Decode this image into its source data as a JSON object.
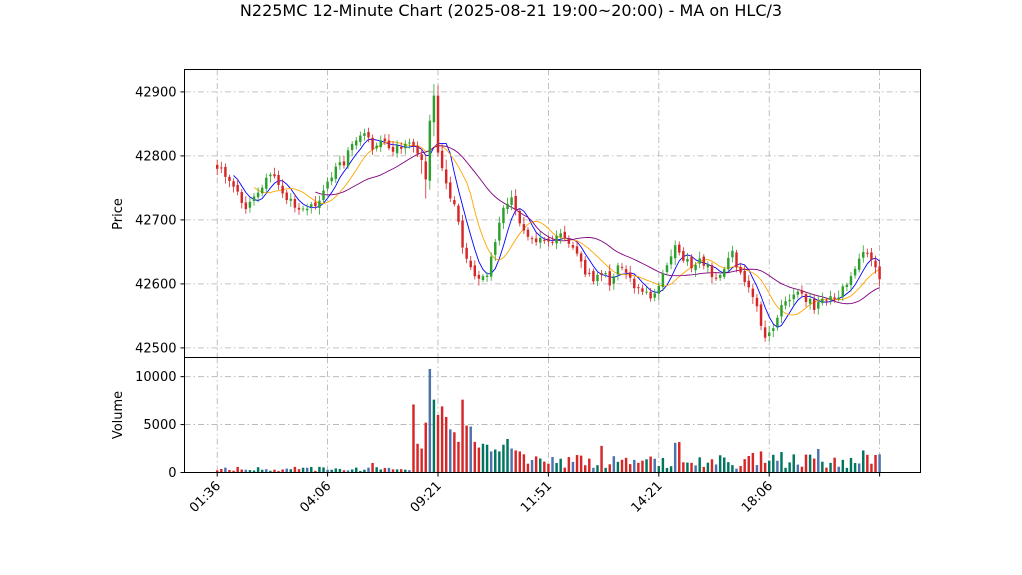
{
  "chart_data": {
    "type": "candlestick",
    "title": "N225MC 12-Minute Chart (2025-08-21 19:00~20:00) - MA on HLC/3",
    "price_panel": {
      "ylabel": "Price",
      "ylim": [
        42485,
        42935
      ],
      "yticks": [
        42500,
        42600,
        42700,
        42800,
        42900
      ]
    },
    "volume_panel": {
      "ylabel": "Volume",
      "ylim": [
        0,
        12000
      ],
      "yticks": [
        0,
        5000,
        10000
      ]
    },
    "xlim": [
      -8,
      172
    ],
    "xticks": [
      {
        "index": 0,
        "label": "01:36"
      },
      {
        "index": 27,
        "label": "04:06"
      },
      {
        "index": 54,
        "label": "09:21"
      },
      {
        "index": 81,
        "label": "11:51"
      },
      {
        "index": 108,
        "label": "14:21"
      },
      {
        "index": 135,
        "label": "18:06"
      },
      {
        "index": 162,
        "label": ""
      }
    ],
    "colors": {
      "up": "#2ca02c",
      "down": "#d62728",
      "ma_short": "#0000ff",
      "ma_mid": "#ffa500",
      "ma_long": "#800080",
      "volume_up": "#007560",
      "volume_down": "#d62728",
      "volume_alt": "#4c72b0"
    },
    "anchors_close": [
      [
        0,
        42780
      ],
      [
        4,
        42755
      ],
      [
        7,
        42720
      ],
      [
        10,
        42740
      ],
      [
        13,
        42775
      ],
      [
        16,
        42745
      ],
      [
        19,
        42720
      ],
      [
        22,
        42715
      ],
      [
        25,
        42730
      ],
      [
        28,
        42770
      ],
      [
        31,
        42790
      ],
      [
        33,
        42820
      ],
      [
        36,
        42840
      ],
      [
        38,
        42815
      ],
      [
        41,
        42820
      ],
      [
        44,
        42810
      ],
      [
        47,
        42815
      ],
      [
        50,
        42800
      ],
      [
        51,
        42760
      ],
      [
        52,
        42850
      ],
      [
        53,
        42900
      ],
      [
        54,
        42800
      ],
      [
        56,
        42760
      ],
      [
        58,
        42720
      ],
      [
        60,
        42660
      ],
      [
        62,
        42620
      ],
      [
        64,
        42605
      ],
      [
        66,
        42620
      ],
      [
        68,
        42660
      ],
      [
        70,
        42720
      ],
      [
        72,
        42730
      ],
      [
        74,
        42700
      ],
      [
        76,
        42680
      ],
      [
        78,
        42670
      ],
      [
        80,
        42665
      ],
      [
        82,
        42660
      ],
      [
        84,
        42680
      ],
      [
        86,
        42665
      ],
      [
        88,
        42650
      ],
      [
        90,
        42620
      ],
      [
        92,
        42610
      ],
      [
        94,
        42620
      ],
      [
        96,
        42600
      ],
      [
        98,
        42625
      ],
      [
        100,
        42615
      ],
      [
        102,
        42600
      ],
      [
        104,
        42585
      ],
      [
        106,
        42580
      ],
      [
        108,
        42600
      ],
      [
        110,
        42630
      ],
      [
        112,
        42655
      ],
      [
        114,
        42640
      ],
      [
        116,
        42630
      ],
      [
        118,
        42640
      ],
      [
        120,
        42625
      ],
      [
        122,
        42610
      ],
      [
        124,
        42630
      ],
      [
        126,
        42645
      ],
      [
        128,
        42620
      ],
      [
        130,
        42590
      ],
      [
        132,
        42560
      ],
      [
        134,
        42520
      ],
      [
        136,
        42525
      ],
      [
        138,
        42560
      ],
      [
        140,
        42575
      ],
      [
        142,
        42590
      ],
      [
        144,
        42575
      ],
      [
        146,
        42565
      ],
      [
        148,
        42570
      ],
      [
        150,
        42575
      ],
      [
        152,
        42585
      ],
      [
        154,
        42595
      ],
      [
        156,
        42630
      ],
      [
        158,
        42645
      ],
      [
        160,
        42640
      ],
      [
        161,
        42620
      ],
      [
        162,
        42610
      ]
    ],
    "volume_spikes": [
      [
        48,
        7100
      ],
      [
        49,
        3000
      ],
      [
        50,
        2500
      ],
      [
        51,
        5200
      ],
      [
        52,
        10800
      ],
      [
        53,
        7600
      ],
      [
        54,
        6000
      ],
      [
        55,
        6900
      ],
      [
        56,
        5800
      ],
      [
        57,
        4500
      ],
      [
        58,
        4200
      ],
      [
        59,
        3200
      ],
      [
        60,
        7600
      ],
      [
        61,
        4900
      ],
      [
        62,
        4800
      ],
      [
        63,
        3200
      ],
      [
        64,
        2600
      ],
      [
        65,
        3000
      ],
      [
        66,
        2900
      ],
      [
        67,
        2200
      ],
      [
        68,
        2400
      ],
      [
        69,
        2200
      ],
      [
        70,
        2900
      ],
      [
        71,
        3500
      ],
      [
        72,
        2500
      ],
      [
        73,
        2300
      ],
      [
        74,
        2200
      ],
      [
        75,
        1900
      ]
    ],
    "ma_windows": [
      5,
      10,
      25
    ]
  }
}
